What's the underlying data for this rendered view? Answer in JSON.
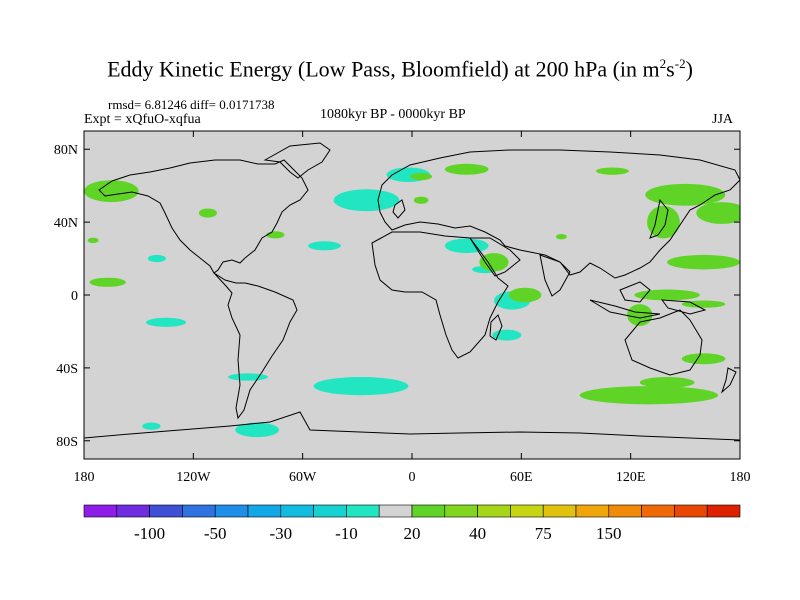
{
  "title": {
    "main": "Eddy Kinetic Energy (Low Pass, Bloomfield) at 200 hPa (in m",
    "sup1": "2",
    "mid": "s",
    "sup2": "-2",
    "end": ")"
  },
  "stats": "rmsd= 6.81246 diff= 0.0171738",
  "experiment": "Expt = xQfuO-xqfua",
  "period": "1080kyr BP - 0000kyr BP",
  "season": "JJA",
  "chart_data": {
    "type": "heatmap",
    "projection": "cylindrical-equidistant",
    "xlim": [
      -180,
      180
    ],
    "ylim": [
      -90,
      90
    ],
    "x_ticks": [
      {
        "value": -180,
        "label": "180"
      },
      {
        "value": -120,
        "label": "120W"
      },
      {
        "value": -60,
        "label": "60W"
      },
      {
        "value": 0,
        "label": "0"
      },
      {
        "value": 60,
        "label": "60E"
      },
      {
        "value": 120,
        "label": "120E"
      },
      {
        "value": 180,
        "label": "180"
      }
    ],
    "y_ticks": [
      {
        "value": 80,
        "label": "80N"
      },
      {
        "value": 40,
        "label": "40N"
      },
      {
        "value": 0,
        "label": "0"
      },
      {
        "value": -40,
        "label": "40S"
      },
      {
        "value": -80,
        "label": "80S"
      }
    ],
    "background_color": "#d3d3d3",
    "colorbar": {
      "colors": [
        "#8e1de8",
        "#6f2ce0",
        "#3f4fd6",
        "#2f72e0",
        "#1f8ee8",
        "#12a7e6",
        "#10bde0",
        "#18d2d2",
        "#22e6c2",
        "#d3d3d3",
        "#60d426",
        "#82d61e",
        "#a6d618",
        "#c6d412",
        "#e0c20e",
        "#eea60a",
        "#f08a08",
        "#ef6a06",
        "#e84804",
        "#dd2202"
      ],
      "labels": [
        {
          "after": 1,
          "text": "-100"
        },
        {
          "after": 3,
          "text": "-50"
        },
        {
          "after": 5,
          "text": "-30"
        },
        {
          "after": 7,
          "text": "-10"
        },
        {
          "after": 9,
          "text": "20"
        },
        {
          "after": 11,
          "text": "40"
        },
        {
          "after": 13,
          "text": "75"
        },
        {
          "after": 15,
          "text": "150"
        }
      ]
    },
    "anomaly_regions": [
      {
        "level": "negative",
        "lon": -25,
        "lat": 52,
        "rx": 18,
        "ry": 6
      },
      {
        "level": "negative",
        "lon": -2,
        "lat": 66,
        "rx": 12,
        "ry": 4
      },
      {
        "level": "negative",
        "lon": -48,
        "lat": 27,
        "rx": 9,
        "ry": 2.5
      },
      {
        "level": "negative",
        "lon": -140,
        "lat": 20,
        "rx": 5,
        "ry": 2
      },
      {
        "level": "negative",
        "lon": 30,
        "lat": 27,
        "rx": 12,
        "ry": 4
      },
      {
        "level": "negative",
        "lon": 40,
        "lat": 14,
        "rx": 7,
        "ry": 2
      },
      {
        "level": "negative",
        "lon": 55,
        "lat": -3,
        "rx": 10,
        "ry": 5
      },
      {
        "level": "negative",
        "lon": 52,
        "lat": -22,
        "rx": 8,
        "ry": 3
      },
      {
        "level": "negative",
        "lon": -135,
        "lat": -15,
        "rx": 11,
        "ry": 2.5
      },
      {
        "level": "negative",
        "lon": -90,
        "lat": -45,
        "rx": 11,
        "ry": 2
      },
      {
        "level": "negative",
        "lon": -28,
        "lat": -50,
        "rx": 26,
        "ry": 5
      },
      {
        "level": "negative",
        "lon": -85,
        "lat": -74,
        "rx": 12,
        "ry": 4
      },
      {
        "level": "negative",
        "lon": -143,
        "lat": -72,
        "rx": 5,
        "ry": 2
      },
      {
        "level": "positive",
        "lon": -165,
        "lat": 57,
        "rx": 15,
        "ry": 6
      },
      {
        "level": "positive",
        "lon": -112,
        "lat": 45,
        "rx": 5,
        "ry": 2.5
      },
      {
        "level": "positive",
        "lon": -75,
        "lat": 33,
        "rx": 5,
        "ry": 2
      },
      {
        "level": "positive",
        "lon": -175,
        "lat": 30,
        "rx": 3,
        "ry": 1.5
      },
      {
        "level": "positive",
        "lon": -167,
        "lat": 7,
        "rx": 10,
        "ry": 2.5
      },
      {
        "level": "positive",
        "lon": 30,
        "lat": 69,
        "rx": 12,
        "ry": 3
      },
      {
        "level": "positive",
        "lon": 5,
        "lat": 65,
        "rx": 6,
        "ry": 2
      },
      {
        "level": "positive",
        "lon": 5,
        "lat": 52,
        "rx": 4,
        "ry": 2
      },
      {
        "level": "positive",
        "lon": 110,
        "lat": 68,
        "rx": 9,
        "ry": 2
      },
      {
        "level": "positive",
        "lon": 150,
        "lat": 55,
        "rx": 22,
        "ry": 6
      },
      {
        "level": "positive",
        "lon": 138,
        "lat": 40,
        "rx": 9,
        "ry": 9
      },
      {
        "level": "positive",
        "lon": 170,
        "lat": 45,
        "rx": 14,
        "ry": 6
      },
      {
        "level": "positive",
        "lon": 160,
        "lat": 18,
        "rx": 20,
        "ry": 4
      },
      {
        "level": "positive",
        "lon": 82,
        "lat": 32,
        "rx": 3,
        "ry": 1.5
      },
      {
        "level": "positive",
        "lon": 45,
        "lat": 18,
        "rx": 8,
        "ry": 5
      },
      {
        "level": "positive",
        "lon": 62,
        "lat": 0,
        "rx": 9,
        "ry": 4
      },
      {
        "level": "positive",
        "lon": 140,
        "lat": 0,
        "rx": 18,
        "ry": 3
      },
      {
        "level": "positive",
        "lon": 160,
        "lat": -5,
        "rx": 12,
        "ry": 2
      },
      {
        "level": "positive",
        "lon": 125,
        "lat": -11,
        "rx": 7,
        "ry": 6
      },
      {
        "level": "positive",
        "lon": 160,
        "lat": -35,
        "rx": 12,
        "ry": 3
      },
      {
        "level": "positive",
        "lon": 130,
        "lat": -55,
        "rx": 38,
        "ry": 5
      },
      {
        "level": "positive",
        "lon": 140,
        "lat": -48,
        "rx": 15,
        "ry": 3
      }
    ]
  }
}
